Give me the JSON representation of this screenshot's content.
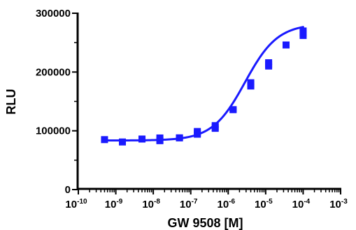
{
  "chart_data": {
    "type": "scatter",
    "title": "",
    "xlabel": "GW 9508 [M]",
    "ylabel": "RLU",
    "x_scale": "log",
    "xlim": [
      1e-10,
      0.001
    ],
    "ylim": [
      0,
      300000
    ],
    "x_ticks": [
      {
        "base": "10",
        "exp": "-10"
      },
      {
        "base": "10",
        "exp": "-9"
      },
      {
        "base": "10",
        "exp": "-8"
      },
      {
        "base": "10",
        "exp": "-7"
      },
      {
        "base": "10",
        "exp": "-6"
      },
      {
        "base": "10",
        "exp": "-5"
      },
      {
        "base": "10",
        "exp": "-4"
      },
      {
        "base": "10",
        "exp": "-3"
      }
    ],
    "y_ticks": [
      "0",
      "100000",
      "200000",
      "300000"
    ],
    "y_tick_values": [
      0,
      100000,
      200000,
      300000
    ],
    "grid": false,
    "legend": "none",
    "series": [
      {
        "color": "#1a1aff",
        "marker": "square",
        "x": [
          5e-10,
          1.5e-09,
          5e-09,
          1.5e-08,
          5e-08,
          1.5e-07,
          4.5e-07,
          1.35e-06,
          4e-06,
          1.2e-05,
          3.5e-05,
          0.0001
        ],
        "y": [
          85000,
          81000,
          86000,
          84000,
          88000,
          96000,
          106000,
          136000,
          179000,
          213000,
          246000,
          266000
        ],
        "y_high": [
          85000,
          81000,
          87000,
          89000,
          89000,
          100000,
          110000,
          137000,
          183000,
          217000,
          247000,
          271000
        ],
        "y_low": [
          85000,
          80000,
          85000,
          82000,
          87000,
          93000,
          103000,
          135000,
          175000,
          209000,
          245000,
          261000
        ]
      }
    ],
    "fit": {
      "model": "sigmoidal dose-response",
      "bottom": 83500,
      "top": 282000,
      "log_ec50": -5.55,
      "hill_slope": 1.0,
      "x_start": 5e-10,
      "x_end": 0.0001,
      "color": "#1a1aff"
    }
  }
}
